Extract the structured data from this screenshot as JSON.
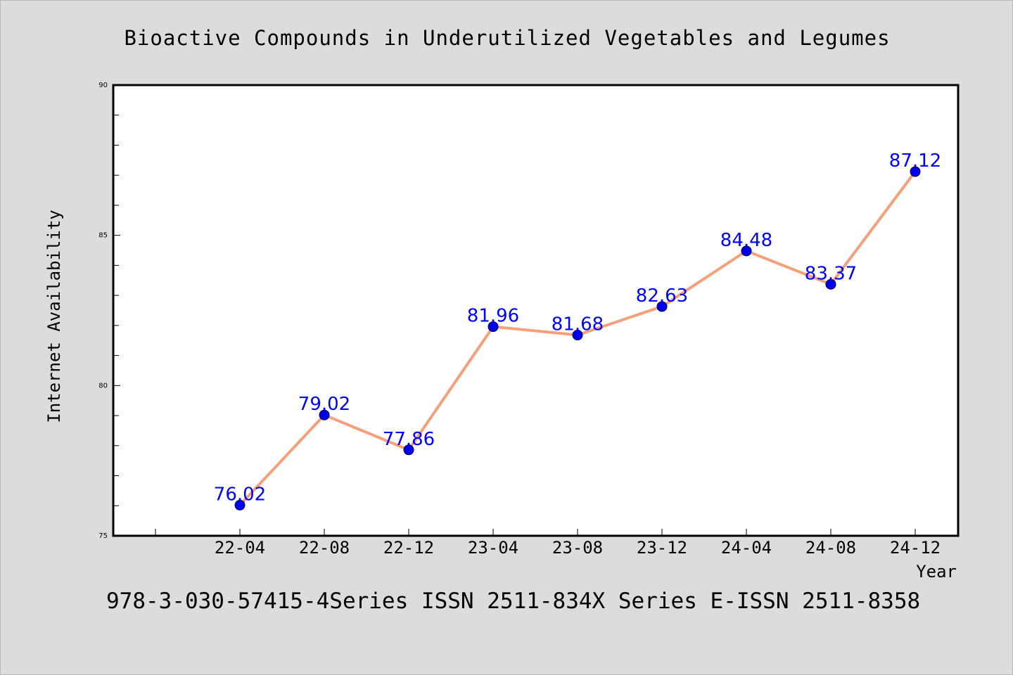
{
  "chart_data": {
    "type": "line",
    "title": "Bioactive Compounds in Underutilized Vegetables and Legumes",
    "xlabel": "Year",
    "ylabel": "Internet Availability",
    "categories": [
      "22-04",
      "22-08",
      "22-12",
      "23-04",
      "23-08",
      "23-12",
      "24-04",
      "24-08",
      "24-12"
    ],
    "series": [
      {
        "values": [
          76.02,
          79.02,
          77.86,
          81.96,
          81.68,
          82.63,
          84.48,
          83.37,
          87.12
        ],
        "data_labels": [
          "76.02",
          "79.02",
          "77.86",
          "81.96",
          "81.68",
          "82.63",
          "84.48",
          "83.37",
          "87.12"
        ],
        "line_color": "#f4a07a",
        "marker_color": "#0000ee"
      }
    ],
    "ylim": [
      75,
      90
    ],
    "yticks": [
      "75",
      "80",
      "85",
      "90"
    ],
    "grid": false,
    "legend": "none",
    "label_color": "#0000ff"
  },
  "footer": "978-3-030-57415-4Series ISSN 2511-834X Series E-ISSN 2511-8358"
}
